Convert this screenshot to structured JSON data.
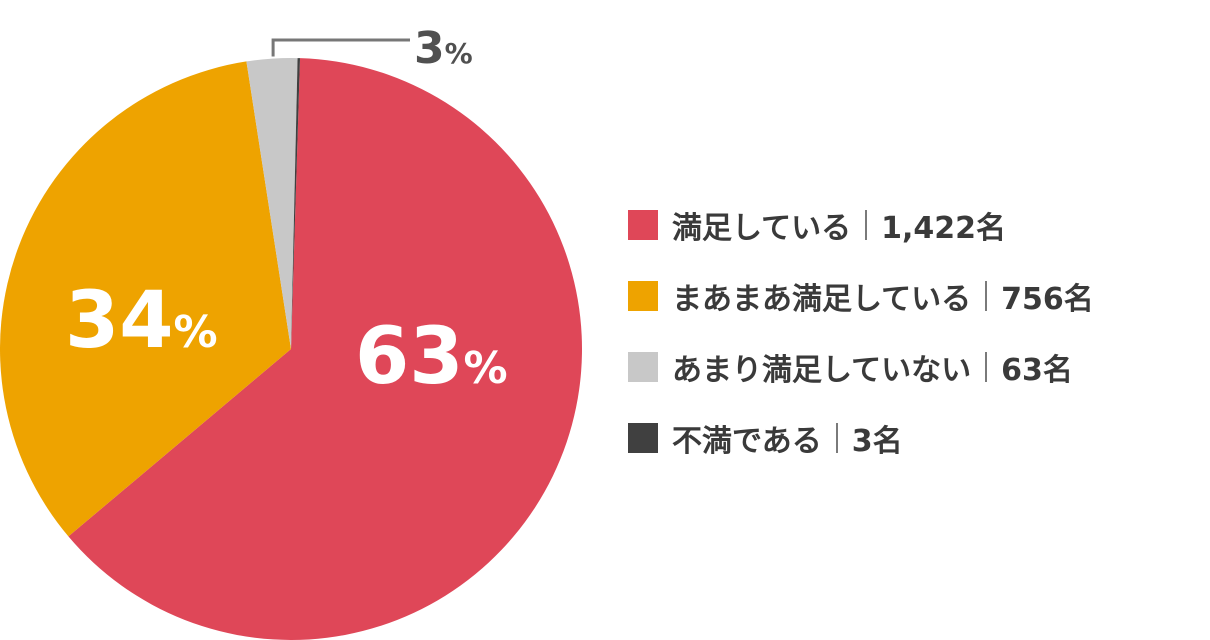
{
  "chart_data": {
    "type": "pie",
    "categories": [
      "満足している",
      "まあまあ満足している",
      "あまり満足していない",
      "不満である"
    ],
    "values": [
      1422,
      756,
      63,
      3
    ],
    "counts_display": [
      "1,422名",
      "756名",
      "63名",
      "3名"
    ],
    "percent_labels": [
      {
        "num": "63",
        "unit": "%"
      },
      {
        "num": "34",
        "unit": "%"
      },
      {
        "num": "3",
        "unit": "%"
      }
    ],
    "colors": [
      "#df4758",
      "#eea300",
      "#c8c8c8",
      "#404040"
    ],
    "legend_position": "right",
    "title": "",
    "xlabel": "",
    "ylabel": ""
  }
}
